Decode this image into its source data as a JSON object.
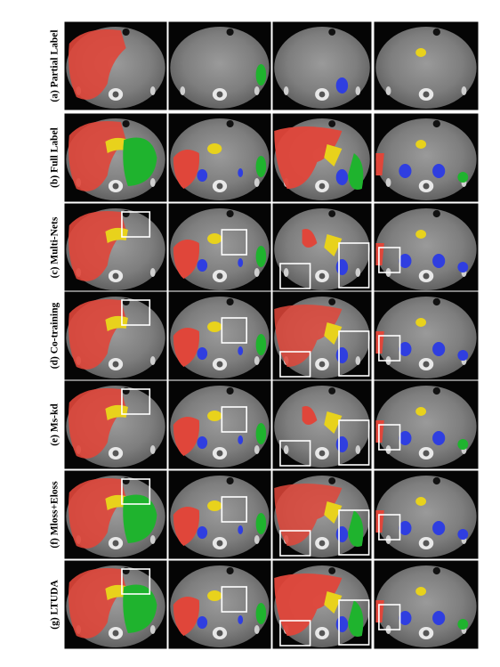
{
  "figure": {
    "rows": [
      {
        "id": "a",
        "label": "(a) Partial Label"
      },
      {
        "id": "b",
        "label": "(b) Full Label"
      },
      {
        "id": "c",
        "label": "(c) Multi-Nets"
      },
      {
        "id": "d",
        "label": "(d) Co-training"
      },
      {
        "id": "e",
        "label": "(e) Ms-kd"
      },
      {
        "id": "f",
        "label": "(f) Mloss+Eloss"
      },
      {
        "id": "g",
        "label": "(g) LTUDA"
      }
    ],
    "colors": {
      "liver": "#e0463a",
      "pancreas": "#e8d21c",
      "kidney": "#2f3ee0",
      "spleen": "#1fb32e",
      "highlight_box": "#ffffff"
    },
    "icons": [
      "ct-slice-thumbnail"
    ]
  }
}
